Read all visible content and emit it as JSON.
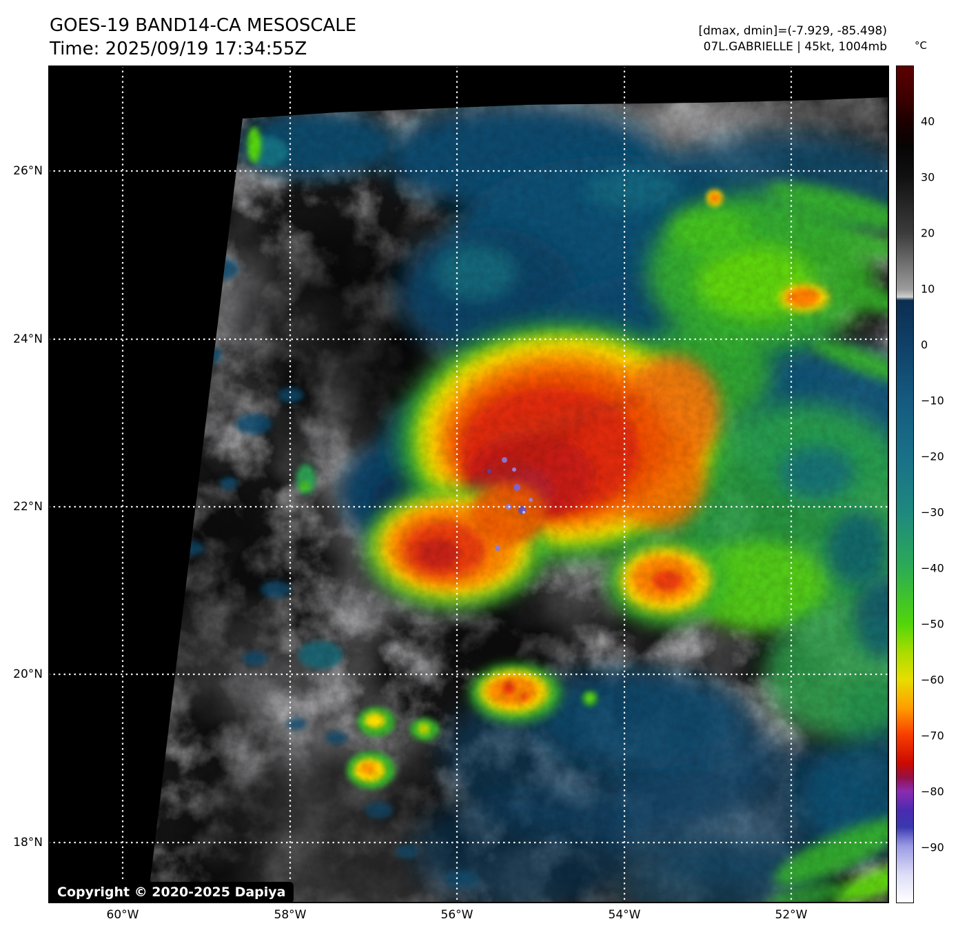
{
  "header": {
    "title": "GOES-19 BAND14-CA MESOSCALE",
    "time": "Time: 2025/09/19 17:34:55Z",
    "range_info": "[dmax, dmin]=(-7.929, -85.498)",
    "storm_info": "07L.GABRIELLE | 45kt, 1004mb"
  },
  "map": {
    "copyright": "Copyright © 2020-2025 Dapiya",
    "lat_ticks": [
      "26°N",
      "24°N",
      "22°N",
      "20°N",
      "18°N"
    ],
    "lon_ticks": [
      "60°W",
      "58°W",
      "56°W",
      "54°W",
      "52°W"
    ]
  },
  "colorbar": {
    "unit": "°C",
    "ticks": [
      {
        "label": "40",
        "value": 40
      },
      {
        "label": "30",
        "value": 30
      },
      {
        "label": "20",
        "value": 20
      },
      {
        "label": "10",
        "value": 10
      },
      {
        "label": "0",
        "value": 0
      },
      {
        "label": "−10",
        "value": -10
      },
      {
        "label": "−20",
        "value": -20
      },
      {
        "label": "−30",
        "value": -30
      },
      {
        "label": "−40",
        "value": -40
      },
      {
        "label": "−50",
        "value": -50
      },
      {
        "label": "−60",
        "value": -60
      },
      {
        "label": "−70",
        "value": -70
      },
      {
        "label": "−80",
        "value": -80
      },
      {
        "label": "−90",
        "value": -90
      }
    ],
    "scale_top_temp": 50,
    "scale_bottom_temp": -100,
    "gradient": [
      [
        0.0,
        "#5e0000"
      ],
      [
        4.0,
        "#3a0000"
      ],
      [
        6.7,
        "#1c0000"
      ],
      [
        9.5,
        "#070404"
      ],
      [
        13.3,
        "#111111"
      ],
      [
        20.0,
        "#3c3c3c"
      ],
      [
        26.7,
        "#9c9c9c"
      ],
      [
        27.6,
        "#cfcfcf"
      ],
      [
        28.0,
        "#0b2e50"
      ],
      [
        33.3,
        "#104068"
      ],
      [
        40.0,
        "#155a80"
      ],
      [
        46.7,
        "#197088"
      ],
      [
        53.3,
        "#1e887f"
      ],
      [
        60.0,
        "#2cab54"
      ],
      [
        66.7,
        "#52d60a"
      ],
      [
        70.0,
        "#a8dc00"
      ],
      [
        73.3,
        "#e6de00"
      ],
      [
        76.7,
        "#ff9e00"
      ],
      [
        80.0,
        "#f83c00"
      ],
      [
        83.3,
        "#cc0a00"
      ],
      [
        85.0,
        "#951043"
      ],
      [
        86.7,
        "#8b2bb0"
      ],
      [
        89.0,
        "#4a2bb0"
      ],
      [
        91.0,
        "#3939ae"
      ],
      [
        92.5,
        "#7d7dd4"
      ],
      [
        93.3,
        "#9c9ce4"
      ],
      [
        96.7,
        "#dedef8"
      ],
      [
        100.0,
        "#ffffff"
      ]
    ]
  }
}
